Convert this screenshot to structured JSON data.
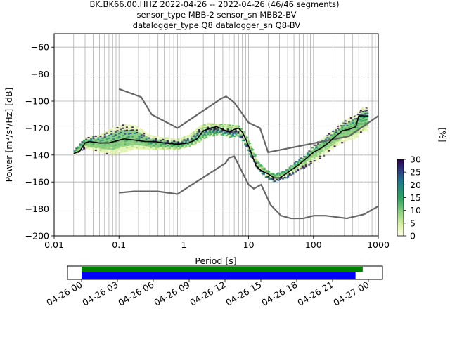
{
  "title_lines": [
    "BK.BK66.00.HHZ   2022-04-26 -- 2022-04-26  (46/46 segments)",
    "sensor_type MBB-2 sensor_sn MBB2-BV",
    "datalogger_type Q8 datalogger_sn Q8-BV"
  ],
  "chart_data": {
    "type": "heatmap",
    "xlabel": "Period [s]",
    "ylabel": "Power [m²/s⁴/Hz] [dB]",
    "xscale": "log",
    "xlim": [
      0.01,
      1000
    ],
    "ylim": [
      -200,
      -50
    ],
    "x_tick_labels": [
      "0.01",
      "0.1",
      "1",
      "10",
      "100",
      "1000"
    ],
    "y_ticks": [
      -60,
      -80,
      -100,
      -120,
      -140,
      -160,
      -180,
      -200
    ],
    "grid": true,
    "colorbar": {
      "label": "[%]",
      "ticks": [
        0,
        5,
        10,
        15,
        20,
        25,
        30
      ],
      "range": [
        0,
        30
      ]
    },
    "noise_models": [
      {
        "points": [
          [
            0.1,
            -91
          ],
          [
            0.22,
            -97
          ],
          [
            0.32,
            -110
          ],
          [
            0.8,
            -120
          ],
          [
            3.8,
            -98
          ],
          [
            4.5,
            -96.5
          ],
          [
            6.0,
            -101
          ],
          [
            10.0,
            -116
          ],
          [
            15.0,
            -120
          ],
          [
            20.0,
            -138
          ],
          [
            354.0,
            -126
          ],
          [
            1000.0,
            -111
          ]
        ]
      },
      {
        "points": [
          [
            0.1,
            -168
          ],
          [
            0.17,
            -167
          ],
          [
            0.4,
            -167
          ],
          [
            0.8,
            -169
          ],
          [
            1.24,
            -163
          ],
          [
            3.79,
            -148
          ],
          [
            4.4,
            -146
          ],
          [
            5.0,
            -142
          ],
          [
            6.0,
            -141
          ],
          [
            10.0,
            -162
          ],
          [
            12.0,
            -165
          ],
          [
            15.6,
            -162
          ],
          [
            21.9,
            -177
          ],
          [
            31.6,
            -185
          ],
          [
            45.0,
            -187
          ],
          [
            70.0,
            -187
          ],
          [
            101.0,
            -185
          ],
          [
            154.0,
            -185
          ],
          [
            328.0,
            -187
          ],
          [
            600.0,
            -184
          ],
          [
            1000.0,
            -178
          ]
        ]
      }
    ],
    "mean_curve": [
      [
        0.02,
        -139
      ],
      [
        0.025,
        -137
      ],
      [
        0.03,
        -131
      ],
      [
        0.035,
        -130
      ],
      [
        0.05,
        -131
      ],
      [
        0.07,
        -131
      ],
      [
        0.1,
        -129
      ],
      [
        0.12,
        -128
      ],
      [
        0.18,
        -129
      ],
      [
        0.25,
        -130
      ],
      [
        0.35,
        -130
      ],
      [
        0.5,
        -131
      ],
      [
        0.8,
        -132
      ],
      [
        1.2,
        -131
      ],
      [
        1.6,
        -128
      ],
      [
        2.0,
        -122
      ],
      [
        2.6,
        -120
      ],
      [
        3.2,
        -119
      ],
      [
        4.0,
        -121
      ],
      [
        5.0,
        -123
      ],
      [
        6.0,
        -121
      ],
      [
        7.0,
        -120
      ],
      [
        8.0,
        -123
      ],
      [
        9.0,
        -128
      ],
      [
        10.5,
        -136
      ],
      [
        13.0,
        -148
      ],
      [
        16.0,
        -152
      ],
      [
        20.0,
        -154
      ],
      [
        25.0,
        -157
      ],
      [
        30.0,
        -157
      ],
      [
        40.0,
        -153
      ],
      [
        60.0,
        -147
      ],
      [
        80.0,
        -142
      ],
      [
        100.0,
        -138
      ],
      [
        130.0,
        -135
      ],
      [
        170.0,
        -131
      ],
      [
        220.0,
        -126
      ],
      [
        280.0,
        -122
      ],
      [
        350.0,
        -121
      ],
      [
        450.0,
        -119
      ],
      [
        500.0,
        -111
      ],
      [
        700.0,
        -111
      ]
    ],
    "density_bands": [
      [
        [
          0.02,
          -140,
          -137
        ],
        [
          0.03,
          -135,
          -127
        ],
        [
          0.05,
          -138,
          -125
        ],
        [
          0.08,
          -140,
          -120
        ],
        [
          0.12,
          -138,
          -117
        ],
        [
          0.18,
          -136,
          -118
        ],
        [
          0.3,
          -136,
          -125
        ],
        [
          0.5,
          -136,
          -127
        ],
        [
          0.8,
          -136,
          -128
        ],
        [
          1.2,
          -134,
          -125
        ],
        [
          1.8,
          -130,
          -118
        ],
        [
          2.6,
          -126,
          -116
        ],
        [
          3.5,
          -125,
          -117
        ],
        [
          5.0,
          -127,
          -117
        ],
        [
          7.0,
          -126,
          -118
        ],
        [
          9.0,
          -133,
          -124
        ],
        [
          11.0,
          -142,
          -133
        ],
        [
          14.0,
          -151,
          -145
        ],
        [
          18.0,
          -156,
          -150
        ],
        [
          25.0,
          -160,
          -154
        ],
        [
          35.0,
          -158,
          -152
        ],
        [
          50.0,
          -154,
          -146
        ],
        [
          70.0,
          -150,
          -141
        ],
        [
          100.0,
          -146,
          -133
        ],
        [
          150.0,
          -140,
          -126
        ],
        [
          220.0,
          -134,
          -120
        ],
        [
          300.0,
          -130,
          -114
        ],
        [
          450.0,
          -128,
          -110
        ],
        [
          550.0,
          -123,
          -105
        ],
        [
          700.0,
          -122,
          -104
        ]
      ]
    ],
    "time_axis": {
      "labels": [
        "04-26 00",
        "04-26 03",
        "04-26 06",
        "04-26 09",
        "04-26 12",
        "04-26 15",
        "04-26 18",
        "04-26 21",
        "04-27 00"
      ],
      "available_fraction": 0.98,
      "used_fraction": 0.955,
      "available_color": "#008000",
      "used_color": "#0000ff"
    },
    "colors": {
      "noise_model": "#666666",
      "mean": "#000000",
      "grid": "#b0b0b0"
    }
  }
}
